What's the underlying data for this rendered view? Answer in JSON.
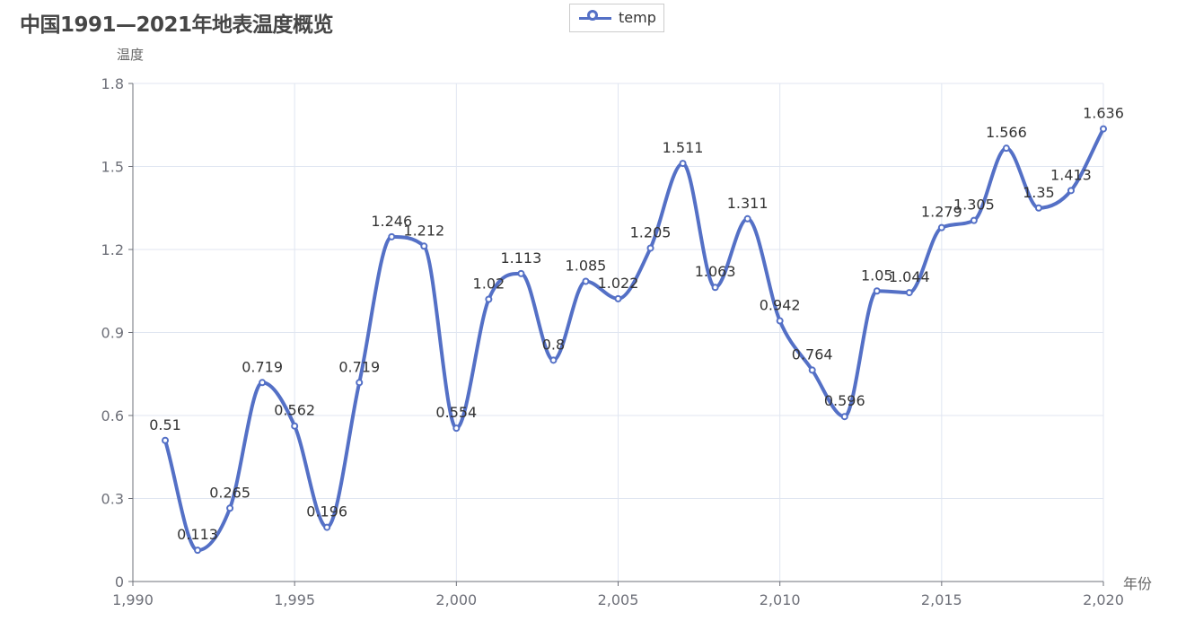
{
  "title": "中国1991—2021年地表温度概览",
  "legend": {
    "label": "temp"
  },
  "colors": {
    "series": "#5470c6",
    "grid": "#e0e6f1",
    "axis": "#6e7079",
    "label": "#333333"
  },
  "chart_data": {
    "type": "line",
    "smooth": true,
    "title": "中国1991—2021年地表温度概览",
    "xlabel": "年份",
    "ylabel": "温度",
    "xlim": [
      1990,
      2020
    ],
    "ylim": [
      0,
      1.8
    ],
    "x_ticks": [
      "1,990",
      "1,995",
      "2,000",
      "2,005",
      "2,010",
      "2,015",
      "2,020"
    ],
    "y_ticks": [
      "0",
      "0.3",
      "0.6",
      "0.9",
      "1.2",
      "1.5",
      "1.8"
    ],
    "grid": true,
    "legend_position": "top-center",
    "series": [
      {
        "name": "temp",
        "x": [
          1991,
          1992,
          1993,
          1994,
          1995,
          1996,
          1997,
          1998,
          1999,
          2000,
          2001,
          2002,
          2003,
          2004,
          2005,
          2006,
          2007,
          2008,
          2009,
          2010,
          2011,
          2012,
          2013,
          2014,
          2015,
          2016,
          2017,
          2018,
          2019,
          2020
        ],
        "values": [
          0.51,
          0.113,
          0.265,
          0.719,
          0.562,
          0.196,
          0.719,
          1.246,
          1.212,
          0.554,
          1.02,
          1.113,
          0.8,
          1.085,
          1.022,
          1.205,
          1.511,
          1.063,
          1.311,
          0.942,
          0.764,
          0.596,
          1.05,
          1.044,
          1.279,
          1.305,
          1.566,
          1.35,
          1.413,
          1.636
        ],
        "labels": [
          "0.51",
          "0.113",
          "0.265",
          "0.719",
          "0.562",
          "0.196",
          "0.719",
          "1.246",
          "1.212",
          "0.554",
          "1.02",
          "1.113",
          "0.8",
          "1.085",
          "1.022",
          "1.205",
          "1.511",
          "1.063",
          "1.311",
          "0.942",
          "0.764",
          "0.596",
          "1.05",
          "1.044",
          "1.279",
          "1.305",
          "1.566",
          "1.35",
          "1.413",
          "1.636"
        ]
      }
    ]
  }
}
